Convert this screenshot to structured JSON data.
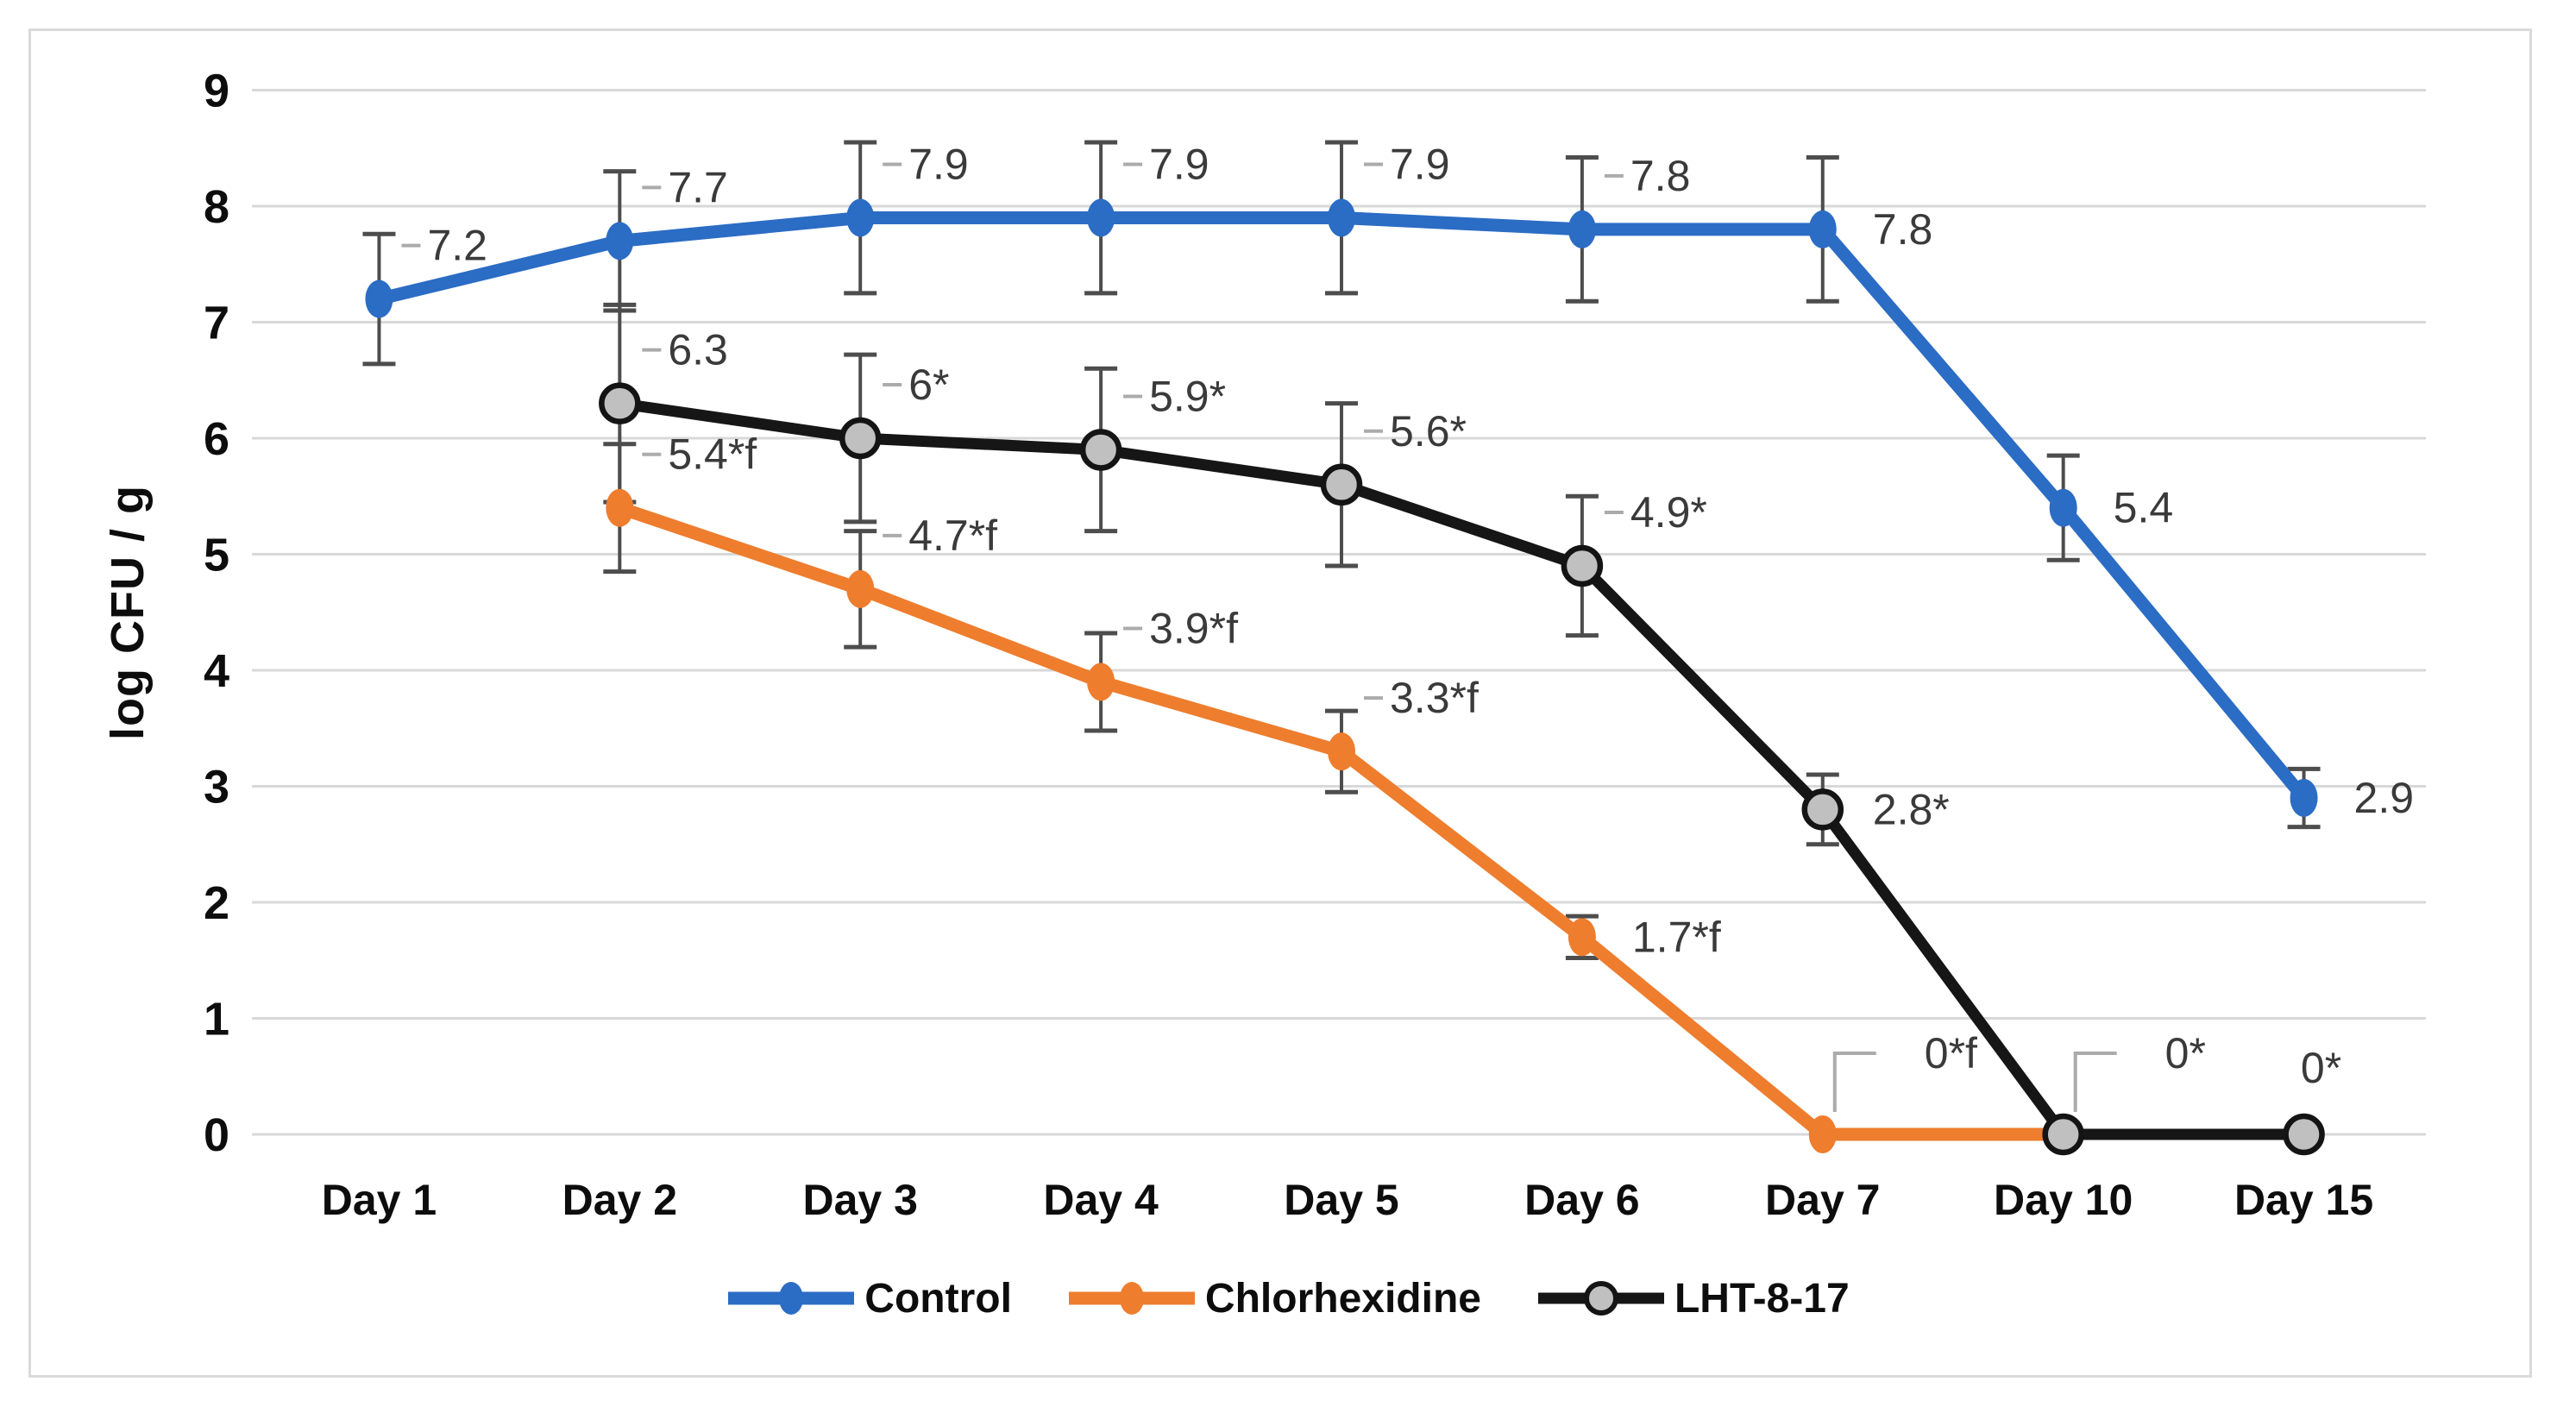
{
  "chart_data": {
    "type": "line",
    "title": "",
    "xlabel": "",
    "ylabel": "log CFU / g",
    "categories": [
      "Day 1",
      "Day 2",
      "Day 3",
      "Day 4",
      "Day 5",
      "Day 6",
      "Day 7",
      "Day 10",
      "Day 15"
    ],
    "y_ticks": [
      0,
      1,
      2,
      3,
      4,
      5,
      6,
      7,
      8,
      9
    ],
    "ylim": [
      0,
      9
    ],
    "grid": "horizontal",
    "legend_position": "bottom",
    "series": [
      {
        "name": "Control",
        "color": "#2B6CC4",
        "marker": "ellipse",
        "line_width": 15,
        "points": [
          {
            "category": "Day 1",
            "value": 7.2,
            "label": "7.2",
            "err": 0.56,
            "label_pos": "ur"
          },
          {
            "category": "Day 2",
            "value": 7.7,
            "label": "7.7",
            "err": 0.6,
            "label_pos": "ur"
          },
          {
            "category": "Day 3",
            "value": 7.9,
            "label": "7.9",
            "err": 0.65,
            "label_pos": "ur"
          },
          {
            "category": "Day 4",
            "value": 7.9,
            "label": "7.9",
            "err": 0.65,
            "label_pos": "ur"
          },
          {
            "category": "Day 5",
            "value": 7.9,
            "label": "7.9",
            "err": 0.65,
            "label_pos": "ur"
          },
          {
            "category": "Day 6",
            "value": 7.8,
            "label": "7.8",
            "err": 0.62,
            "label_pos": "ur"
          },
          {
            "category": "Day 7",
            "value": 7.8,
            "label": "7.8",
            "err": 0.62,
            "label_pos": "r"
          },
          {
            "category": "Day 10",
            "value": 5.4,
            "label": "5.4",
            "err": 0.45,
            "label_pos": "r"
          },
          {
            "category": "Day 15",
            "value": 2.9,
            "label": "2.9",
            "err": 0.25,
            "label_pos": "r"
          }
        ]
      },
      {
        "name": "Chlorhexidine",
        "color": "#EE7D2E",
        "marker": "ellipse",
        "line_width": 15,
        "points": [
          {
            "category": "Day 2",
            "value": 5.4,
            "label": "5.4*f",
            "err": 0.55,
            "label_pos": "ur"
          },
          {
            "category": "Day 3",
            "value": 4.7,
            "label": "4.7*f",
            "err": 0.5,
            "label_pos": "ur"
          },
          {
            "category": "Day 4",
            "value": 3.9,
            "label": "3.9*f",
            "err": 0.42,
            "label_pos": "ur"
          },
          {
            "category": "Day 5",
            "value": 3.3,
            "label": "3.3*f",
            "err": 0.35,
            "label_pos": "ur"
          },
          {
            "category": "Day 6",
            "value": 1.7,
            "label": "1.7*f",
            "err": 0.18,
            "label_pos": "r"
          },
          {
            "category": "Day 7",
            "value": 0,
            "label": "0*f",
            "err": 0,
            "label_pos": "bent0"
          },
          {
            "category": "Day 10",
            "value": 0,
            "label": null,
            "err": 0,
            "label_pos": "none"
          }
        ]
      },
      {
        "name": "LHT-8-17",
        "color": "#161616",
        "marker": "gray-circle",
        "marker_fill": "#C0C0C0",
        "marker_stroke": "#141414",
        "line_width": 13,
        "points": [
          {
            "category": "Day 2",
            "value": 6.3,
            "label": "6.3",
            "err": 0.85,
            "label_pos": "ur"
          },
          {
            "category": "Day 3",
            "value": 6.0,
            "label": "6*",
            "err": 0.72,
            "label_pos": "ur"
          },
          {
            "category": "Day 4",
            "value": 5.9,
            "label": "5.9*",
            "err": 0.7,
            "label_pos": "ur"
          },
          {
            "category": "Day 5",
            "value": 5.6,
            "label": "5.6*",
            "err": 0.7,
            "label_pos": "ur"
          },
          {
            "category": "Day 6",
            "value": 4.9,
            "label": "4.9*",
            "err": 0.6,
            "label_pos": "ur"
          },
          {
            "category": "Day 7",
            "value": 2.8,
            "label": "2.8*",
            "err": 0.3,
            "label_pos": "r"
          },
          {
            "category": "Day 10",
            "value": 0,
            "label": "0*",
            "err": 0,
            "label_pos": "bent0"
          },
          {
            "category": "Day 15",
            "value": 0,
            "label": "0*",
            "err": 0,
            "label_pos": "above"
          }
        ]
      }
    ]
  },
  "colors": {
    "background": "#FFFFFF",
    "panel_border": "#DADADA",
    "gridline": "#D8D8D8",
    "error_bar": "#4D4D4D",
    "leader": "#ABABAB",
    "data_label": "#3A3A3A",
    "axis_text": "#0D0D0D"
  }
}
